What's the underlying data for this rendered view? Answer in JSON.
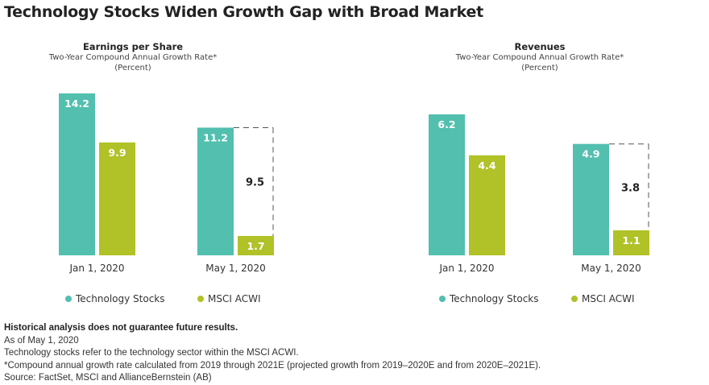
{
  "title": "Technology Stocks Widen Growth Gap with Broad Market",
  "colors": {
    "tech": "#52BFAF",
    "acwi": "#B0C227",
    "gap_line": "#555555",
    "gap_text": "#222222"
  },
  "legend": [
    {
      "name": "Technology Stocks",
      "color_key": "tech"
    },
    {
      "name": "MSCI ACWI",
      "color_key": "acwi"
    }
  ],
  "chart_data": [
    {
      "type": "bar",
      "title": "Earnings per Share",
      "subtitle": "Two-Year Compound Annual Growth Rate*",
      "unit_label": "(Percent)",
      "categories": [
        "Jan 1, 2020",
        "May 1, 2020"
      ],
      "series": [
        {
          "name": "Technology Stocks",
          "values": [
            14.2,
            11.2
          ]
        },
        {
          "name": "MSCI ACWI",
          "values": [
            9.9,
            1.7
          ]
        }
      ],
      "annotations": [
        {
          "category": "May 1, 2020",
          "label": "9.5",
          "type": "gap"
        }
      ],
      "ylim": [
        0,
        14.2
      ],
      "grid": false,
      "legend_position": "bottom"
    },
    {
      "type": "bar",
      "title": "Revenues",
      "subtitle": "Two-Year Compound Annual Growth Rate*",
      "unit_label": "(Percent)",
      "categories": [
        "Jan 1, 2020",
        "May 1, 2020"
      ],
      "series": [
        {
          "name": "Technology Stocks",
          "values": [
            6.2,
            4.9
          ]
        },
        {
          "name": "MSCI ACWI",
          "values": [
            4.4,
            1.1
          ]
        }
      ],
      "annotations": [
        {
          "category": "May 1, 2020",
          "label": "3.8",
          "type": "gap"
        }
      ],
      "ylim": [
        0,
        6.2
      ],
      "grid": false,
      "legend_position": "bottom"
    }
  ],
  "notes": {
    "disclaimer": "Historical analysis does not guarantee future results.",
    "lines": [
      "As of May 1, 2020",
      "Technology stocks refer to the technology sector within the MSCI ACWI.",
      "*Compound annual growth rate calculated from 2019 through 2021E (projected growth from 2019–2020E and from 2020E–2021E).",
      "Source: FactSet, MSCI and AllianceBernstein (AB)"
    ]
  }
}
